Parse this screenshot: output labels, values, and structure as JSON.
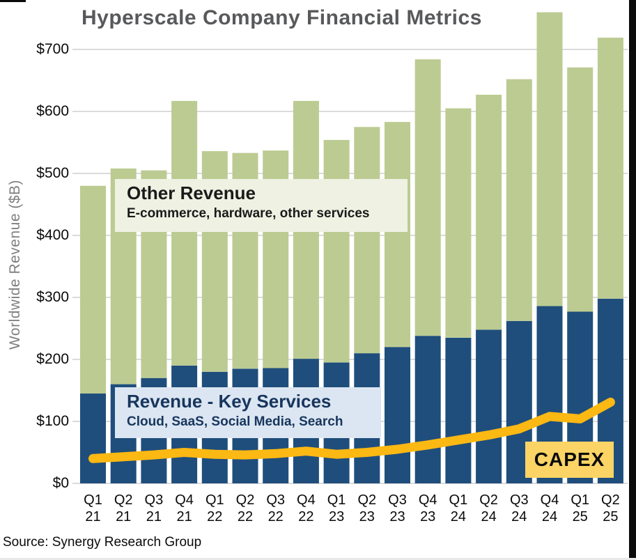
{
  "page": {
    "title": "Hyperscale Company Financial Metrics",
    "source": "Source: Synergy Research Group"
  },
  "colors": {
    "key_services_bar": "#1F4E7C",
    "other_revenue_bar": "#BCCB92",
    "capex_line": "#FCB813",
    "capex_box_bg": "#FBD465",
    "other_callout_bg": "#EFF1E3",
    "key_callout_bg": "#DCE6F2",
    "gridline": "#CFCFCF",
    "title_text": "#58595B",
    "axis_title_text": "#7F7F7F"
  },
  "chart_data": {
    "type": "bar",
    "subtype": "stacked-bars-with-line",
    "title": "Hyperscale Company Financial Metrics",
    "xlabel": "",
    "ylabel": "Worldwide Revenue ($B)",
    "ylim": [
      0,
      760
    ],
    "yticks": [
      0,
      100,
      200,
      300,
      400,
      500,
      600,
      700
    ],
    "ytick_prefix": "$",
    "grid": "horizontal",
    "legend_position": "inline-callouts",
    "categories": [
      "Q1 21",
      "Q2 21",
      "Q3 21",
      "Q4 21",
      "Q1 22",
      "Q2 22",
      "Q3 22",
      "Q4 22",
      "Q1 23",
      "Q2 23",
      "Q3 23",
      "Q4 23",
      "Q1 24",
      "Q2 24",
      "Q3 24",
      "Q4 24",
      "Q1 25",
      "Q2 25"
    ],
    "series": [
      {
        "name": "Revenue - Key Services",
        "render": "bar-stack-bottom",
        "color": "#1F4E7C",
        "values": [
          145,
          160,
          170,
          190,
          180,
          185,
          186,
          201,
          195,
          210,
          220,
          238,
          235,
          248,
          262,
          286,
          277,
          298
        ]
      },
      {
        "name": "Other Revenue",
        "render": "bar-stack-top",
        "color": "#BCCB92",
        "values": [
          335,
          348,
          335,
          427,
          356,
          348,
          351,
          416,
          359,
          365,
          363,
          446,
          370,
          379,
          390,
          474,
          394,
          421
        ]
      },
      {
        "name": "CAPEX",
        "render": "line",
        "color": "#FCB813",
        "values": [
          40,
          43,
          46,
          50,
          47,
          46,
          48,
          52,
          47,
          50,
          55,
          62,
          70,
          78,
          88,
          108,
          104,
          131
        ]
      }
    ],
    "totals_per_quarter": [
      480,
      508,
      505,
      617,
      536,
      533,
      537,
      617,
      554,
      575,
      583,
      684,
      605,
      627,
      652,
      760,
      671,
      719
    ],
    "annotations": {
      "other_revenue": {
        "title": "Other Revenue",
        "subtitle": "E-commerce, hardware, other services"
      },
      "key_services": {
        "title": "Revenue - Key Services",
        "subtitle": "Cloud, SaaS, Social Media, Search"
      },
      "capex": {
        "label": "CAPEX"
      }
    }
  }
}
